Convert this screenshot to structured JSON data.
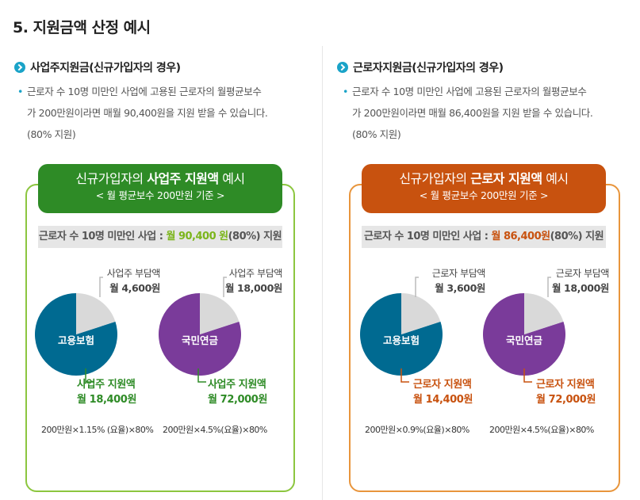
{
  "title": "5. 지원금액 산정 예시",
  "colors": {
    "green": "#2e8b26",
    "orange": "#c8520f",
    "blue": "#006a91",
    "purple": "#7a3b9a",
    "share": "#d9d9d9"
  },
  "left": {
    "heading": "사업주지원금(신규가입자의 경우)",
    "desc_line1": "근로자 수 10명 미만인 사업에 고용된 근로자의 월평균보수",
    "desc_line2": "가 200만원이라면 매월 90,400원을 지원 받을 수 있습니다.",
    "desc_line3": "(80% 지원)",
    "banner_pre": "신규가입자의 ",
    "banner_bold": "사업주 지원액",
    "banner_post": " 예시",
    "banner_sub": "< 월 평균보수 200만원 기준 >",
    "bar_pre": "근로자 수 10명 미만인 사업 : ",
    "bar_hl": "월 90,400 원",
    "bar_post": "(80%) 지원",
    "pies": [
      {
        "center": "고용보험",
        "share_label": "사업주 부담액",
        "share_amount": "월 4,600원",
        "support_label": "사업주 지원액",
        "support_amount": "월 18,400원",
        "formula": "200만원×1.15% (요율)×80%",
        "share_fraction": 0.2
      },
      {
        "center": "국민연금",
        "share_label": "사업주 부담액",
        "share_amount": "월 18,000원",
        "support_label": "사업주 지원액",
        "support_amount": "월 72,000원",
        "formula": "200만원×4.5%(요율)×80%",
        "share_fraction": 0.2
      }
    ]
  },
  "right": {
    "heading": "근로자지원금(신규가입자의 경우)",
    "desc_line1": "근로자 수 10명 미만인 사업에 고용된 근로자의 월평균보수",
    "desc_line2": "가 200만원이라면 매월 86,400원을 지원 받을 수 있습니다.",
    "desc_line3": "(80% 지원)",
    "banner_pre": "신규가입자의 ",
    "banner_bold": "근로자 지원액",
    "banner_post": " 예시",
    "banner_sub": "< 월 평균보수 200만원 기준 >",
    "bar_pre": "근로자 수 10명 미만인 사업 : ",
    "bar_hl": "월 86,400원",
    "bar_post": "(80%) 지원",
    "pies": [
      {
        "center": "고용보험",
        "share_label": "근로자 부담액",
        "share_amount": "월 3,600원",
        "support_label": "근로자 지원액",
        "support_amount": "월 14,400원",
        "formula": "200만원×0.9%(요율)×80%",
        "share_fraction": 0.2
      },
      {
        "center": "국민연금",
        "share_label": "근로자 부담액",
        "share_amount": "월 18,000원",
        "support_label": "근로자 지원액",
        "support_amount": "월 72,000원",
        "formula": "200만원×4.5%(요율)×80%",
        "share_fraction": 0.2
      }
    ]
  }
}
